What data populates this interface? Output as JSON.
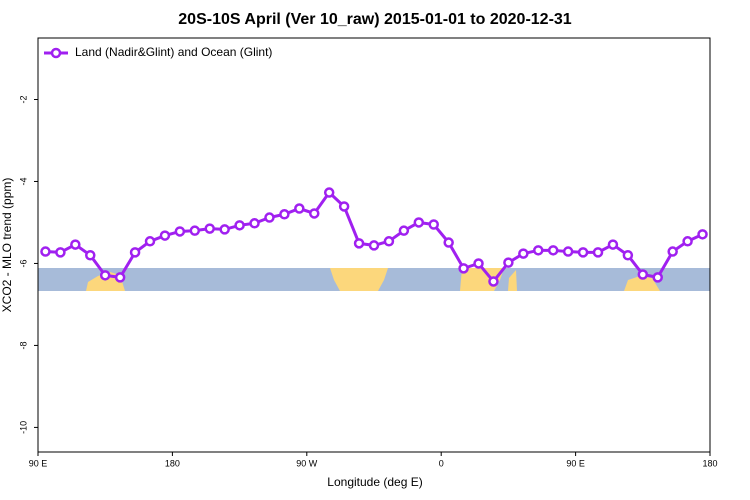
{
  "chart_data": {
    "type": "line",
    "title": "20S-10S April (Ver 10_raw)   2015-01-01 to 2020-12-31",
    "x_label": "Longitude (deg E)",
    "y_label": "XCO2 - MLO trend (ppm)",
    "xlim": [
      90,
      540
    ],
    "ylim": [
      -10.6,
      -0.5
    ],
    "xticks": [
      {
        "value": 90,
        "label": "90 E"
      },
      {
        "value": 180,
        "label": "180"
      },
      {
        "value": 270,
        "label": "90 W"
      },
      {
        "value": 360,
        "label": "0"
      },
      {
        "value": 450,
        "label": "90 E"
      },
      {
        "value": 540,
        "label": "180"
      }
    ],
    "yticks": [
      -10,
      -8,
      -6,
      -4,
      -2
    ],
    "legend": "upper left",
    "x": [
      95,
      105,
      115,
      125,
      135,
      145,
      155,
      165,
      175,
      185,
      195,
      205,
      215,
      225,
      235,
      245,
      255,
      265,
      275,
      285,
      295,
      305,
      315,
      325,
      335,
      345,
      355,
      365,
      375,
      385,
      395,
      405,
      415,
      425,
      435,
      445,
      455,
      465,
      475,
      485,
      495,
      505,
      515,
      525,
      535
    ],
    "series": [
      {
        "name": "Land (Nadir&Glint) and Ocean (Glint)",
        "color": "#a020f0",
        "values": [
          -5.71,
          -5.73,
          -5.54,
          -5.8,
          -6.29,
          -6.34,
          -5.73,
          -5.46,
          -5.32,
          -5.22,
          -5.2,
          -5.15,
          -5.17,
          -5.07,
          -5.02,
          -4.88,
          -4.8,
          -4.66,
          -4.78,
          -4.27,
          -4.61,
          -5.51,
          -5.56,
          -5.46,
          -5.2,
          -5.0,
          -5.05,
          -5.49,
          -6.12,
          -6.0,
          -6.44,
          -5.98,
          -5.76,
          -5.68,
          -5.68,
          -5.71,
          -5.73,
          -5.73,
          -5.54,
          -5.8,
          -6.27,
          -6.34,
          -5.71,
          -5.46,
          -5.29
        ]
      }
    ]
  }
}
